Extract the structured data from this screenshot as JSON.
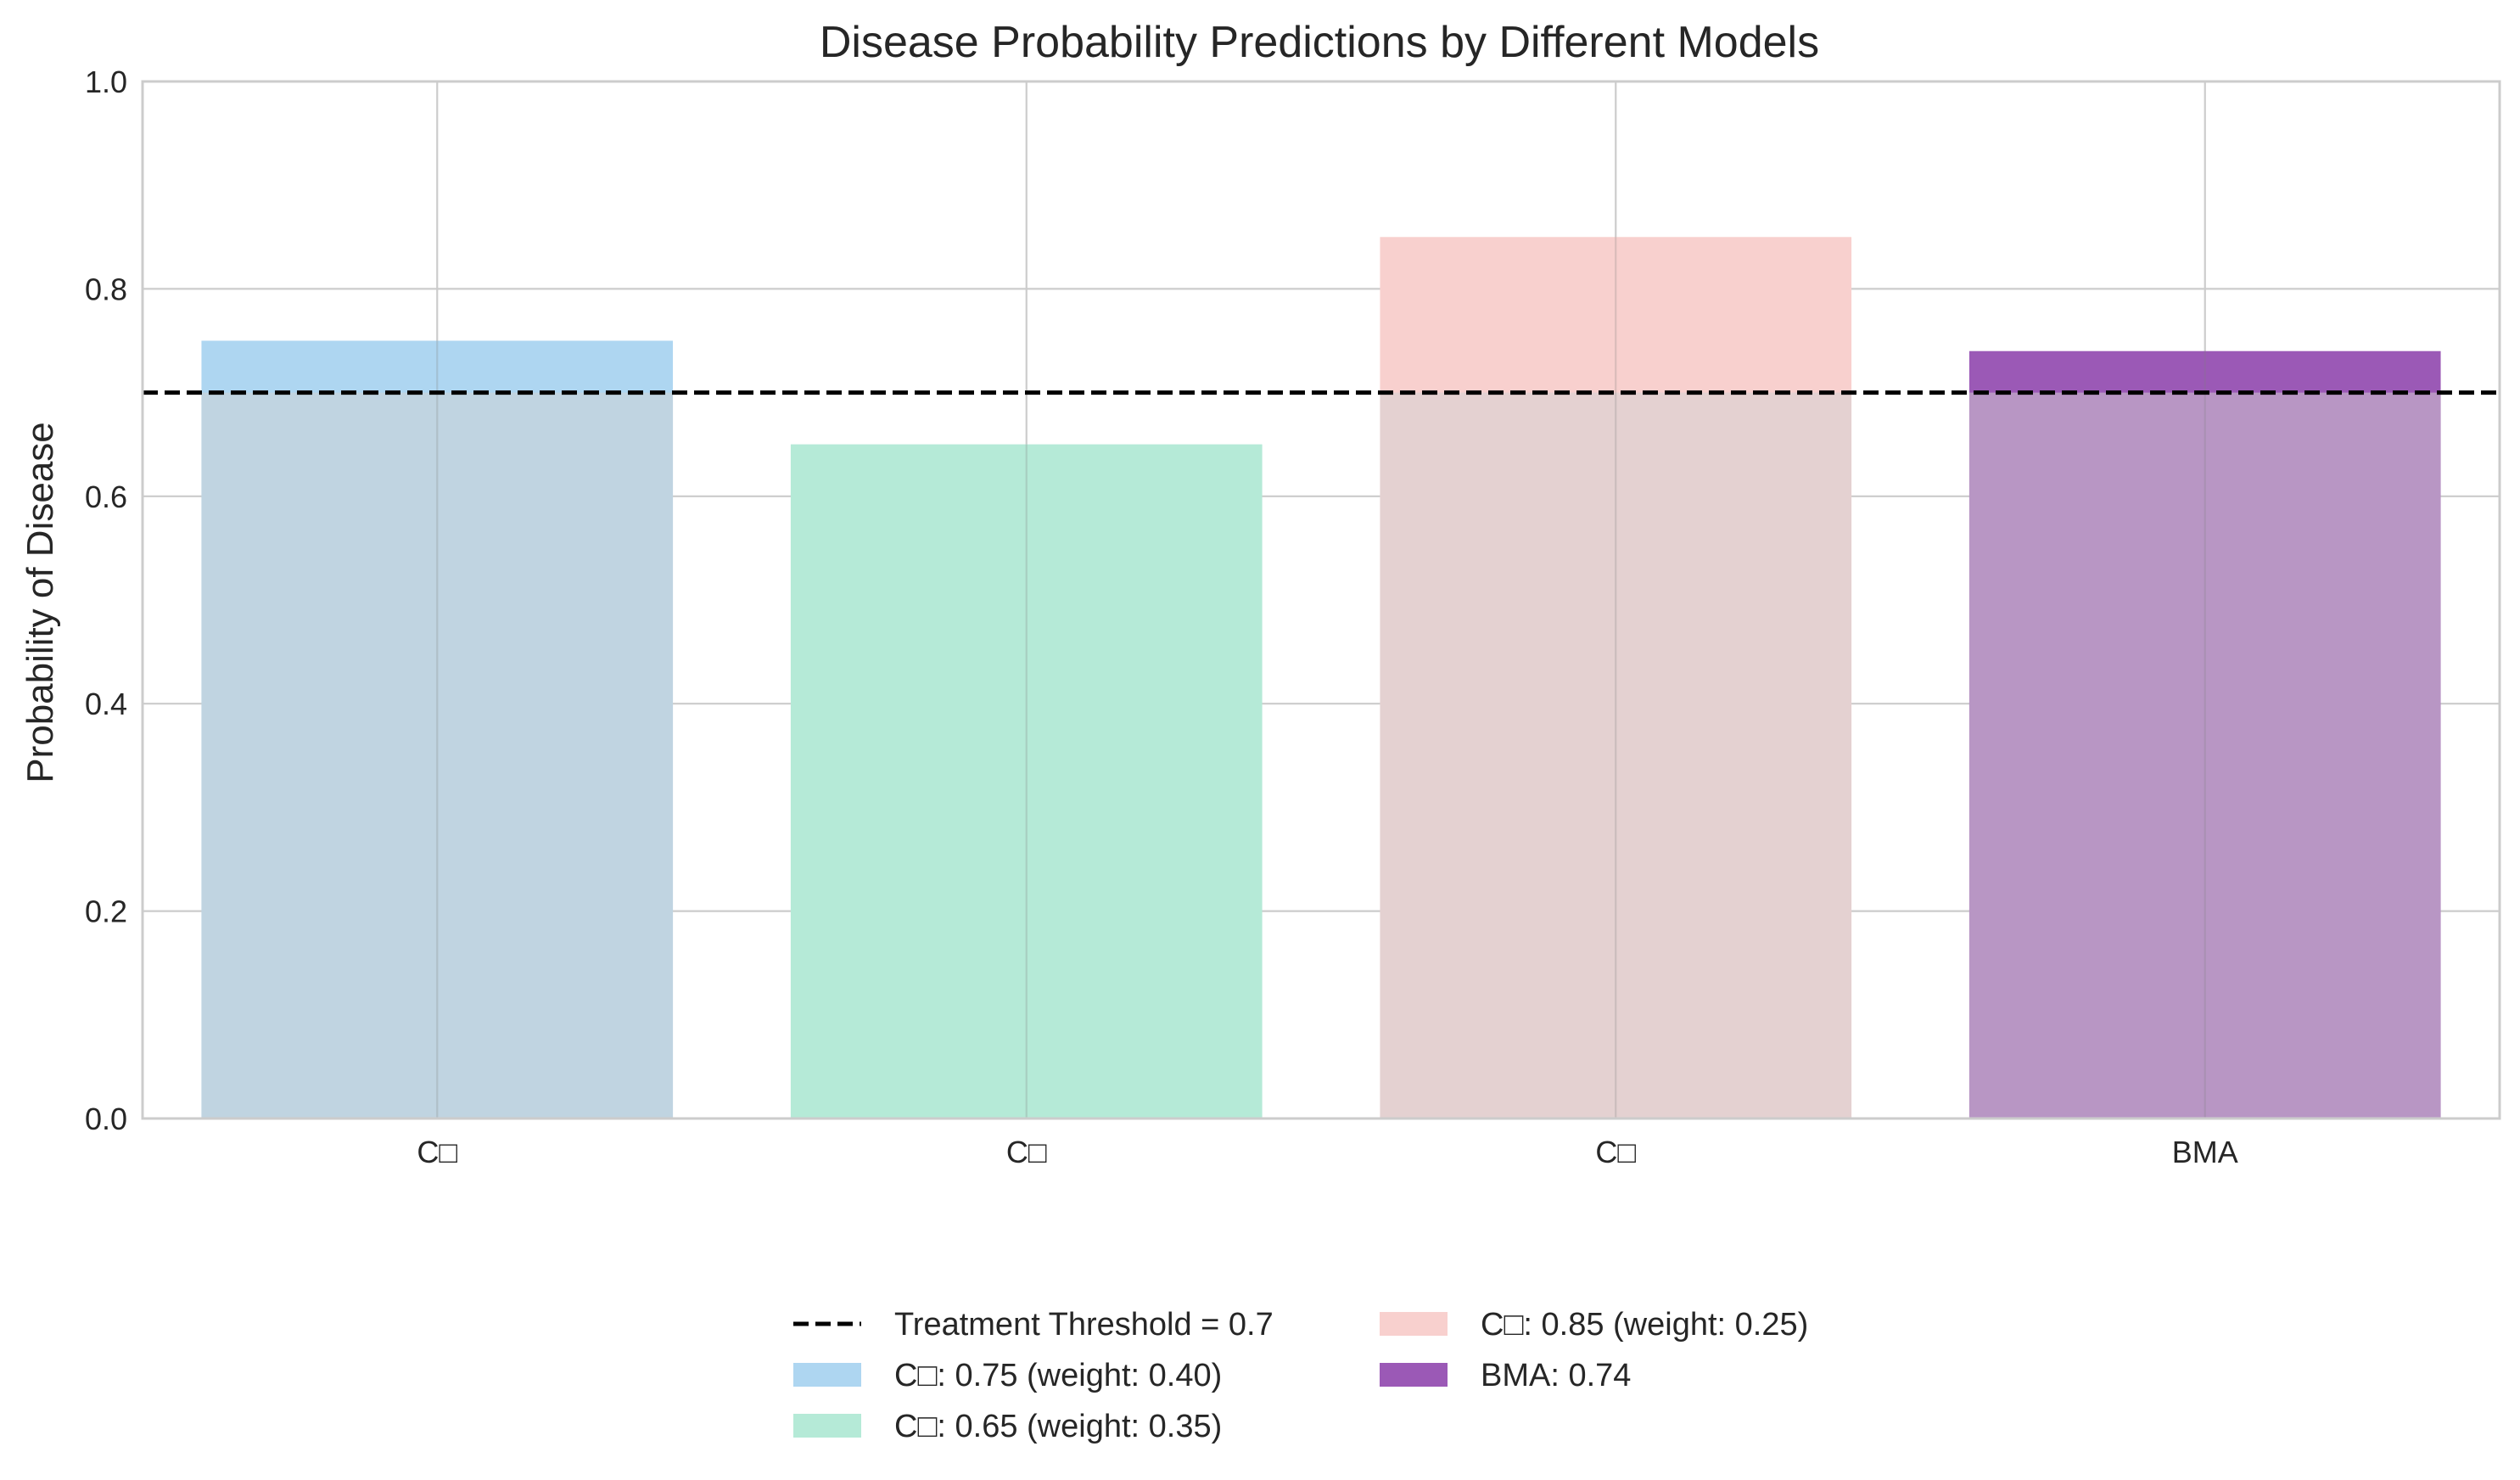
{
  "chart_data": {
    "type": "bar",
    "title": "Disease Probability Predictions by Different Models",
    "xlabel": "",
    "ylabel": "Probability of Disease",
    "ylim": [
      0,
      1.0
    ],
    "yticks": [
      0.0,
      0.2,
      0.4,
      0.6,
      0.8,
      1.0
    ],
    "ytick_labels": [
      "0.0",
      "0.2",
      "0.4",
      "0.6",
      "0.8",
      "1.0"
    ],
    "categories": [
      "C□",
      "C□",
      "C□",
      "BMA"
    ],
    "values": [
      0.75,
      0.65,
      0.85,
      0.74
    ],
    "bar_colors": [
      "#aed6f1",
      "#b5ead7",
      "#f8d0ce",
      "#9b59b6"
    ],
    "overlay_colors": [
      "#c0d4e1",
      "#b5ead7",
      "#e4d1d1",
      "#b896c4"
    ],
    "threshold": {
      "value": 0.7,
      "label": "Treatment Threshold = 0.7",
      "color": "#000000",
      "style": "dashed"
    },
    "legend": {
      "placement": "bottom-center",
      "columns": 2,
      "entries": [
        {
          "label": "Treatment Threshold = 0.7",
          "kind": "line",
          "color": "#000000"
        },
        {
          "label": "C□: 0.75 (weight: 0.40)",
          "kind": "patch",
          "color": "#aed6f1"
        },
        {
          "label": "C□: 0.65 (weight: 0.35)",
          "kind": "patch",
          "color": "#b5ead7"
        },
        {
          "label": "C□: 0.85 (weight: 0.25)",
          "kind": "patch",
          "color": "#f8d0ce"
        },
        {
          "label": "BMA: 0.74",
          "kind": "patch",
          "color": "#9b59b6"
        }
      ]
    },
    "grid": true,
    "colors": {
      "grid": "#cccccc",
      "frame": "#cccccc",
      "text": "#262626"
    }
  }
}
